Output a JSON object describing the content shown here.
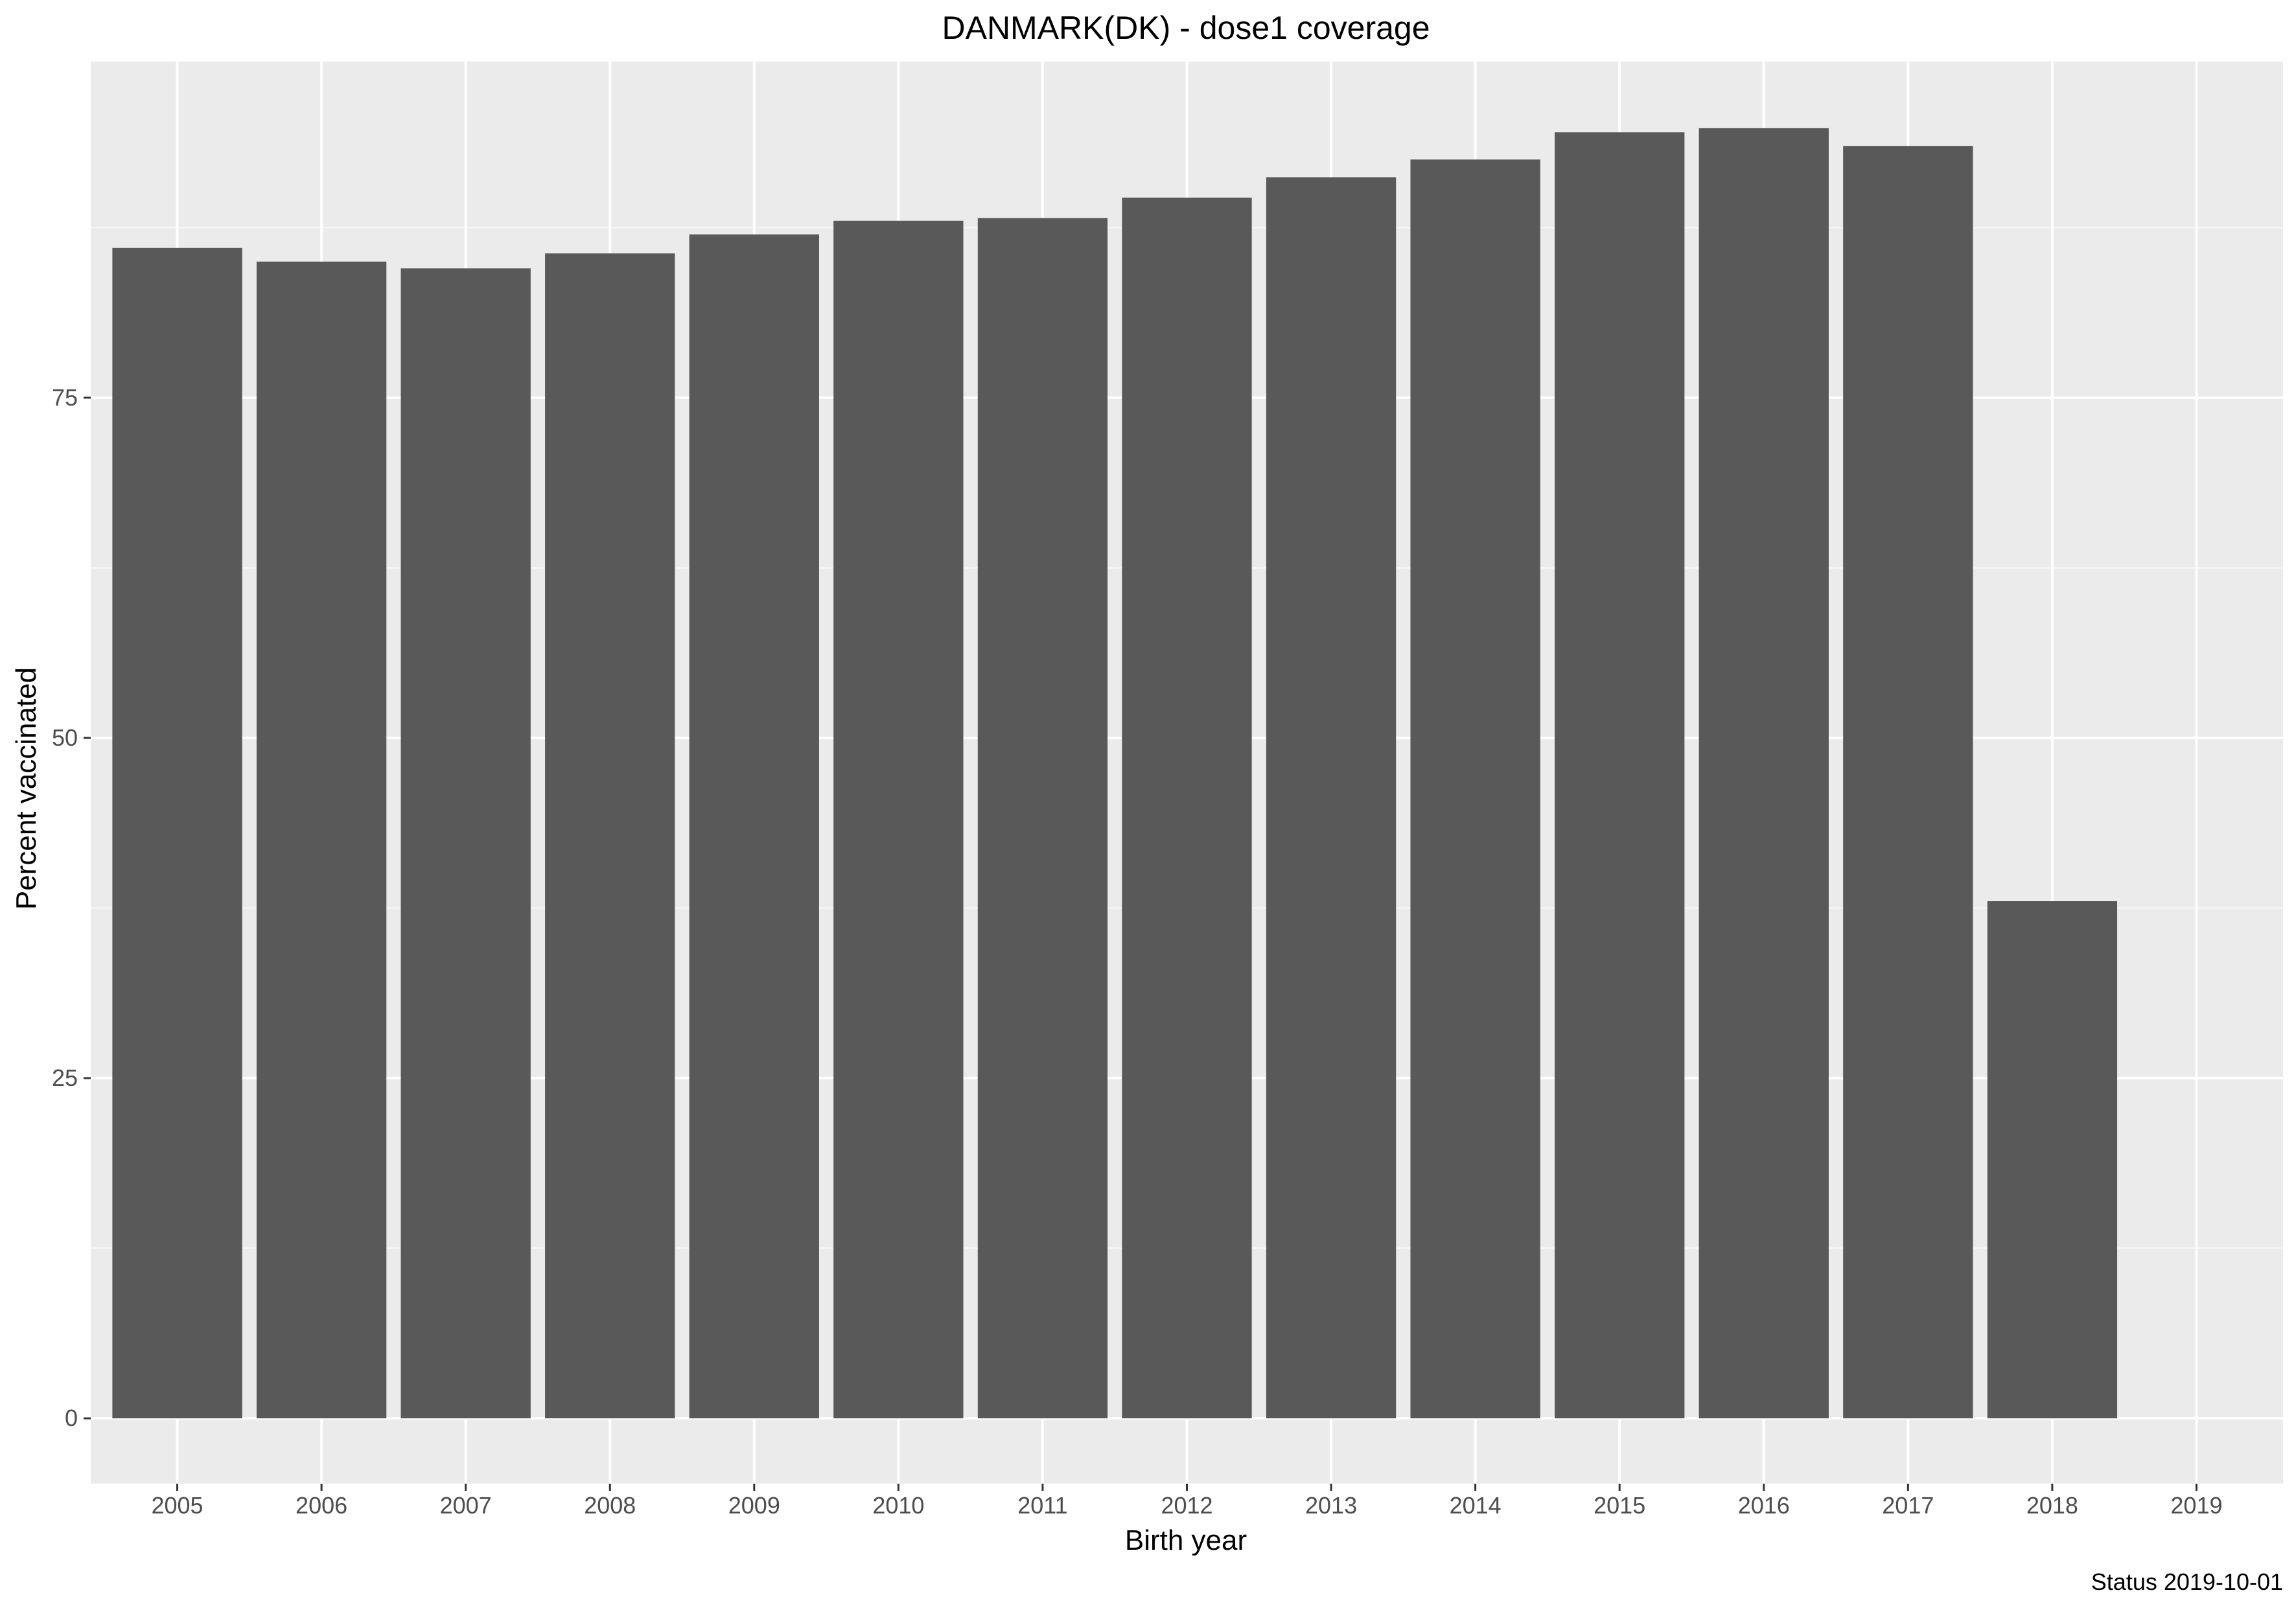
{
  "chart_data": {
    "type": "bar",
    "title": "DANMARK(DK) - dose1 coverage",
    "xlabel": "Birth year",
    "ylabel": "Percent vaccinated",
    "caption": "Status 2019-10-01",
    "categories": [
      "2005",
      "2006",
      "2007",
      "2008",
      "2009",
      "2010",
      "2011",
      "2012",
      "2013",
      "2014",
      "2015",
      "2016",
      "2017",
      "2018",
      "2019"
    ],
    "values": [
      86.0,
      85.0,
      84.5,
      85.6,
      87.0,
      88.0,
      88.2,
      89.7,
      91.2,
      92.5,
      94.5,
      94.8,
      93.5,
      38.0,
      0
    ],
    "y_ticks": [
      0,
      25,
      50,
      75
    ],
    "y_tick_labels": [
      "0",
      "25",
      "50",
      "75"
    ],
    "ylim": [
      -4.8,
      99.7
    ],
    "grid": true,
    "legend": "none",
    "colors": {
      "bar": "#595959",
      "panel_background": "#ebebeb",
      "grid_major": "#ffffff",
      "grid_minor": "#f5f5f5",
      "tick_text": "#4d4d4d",
      "tick_mark": "#333333"
    }
  }
}
